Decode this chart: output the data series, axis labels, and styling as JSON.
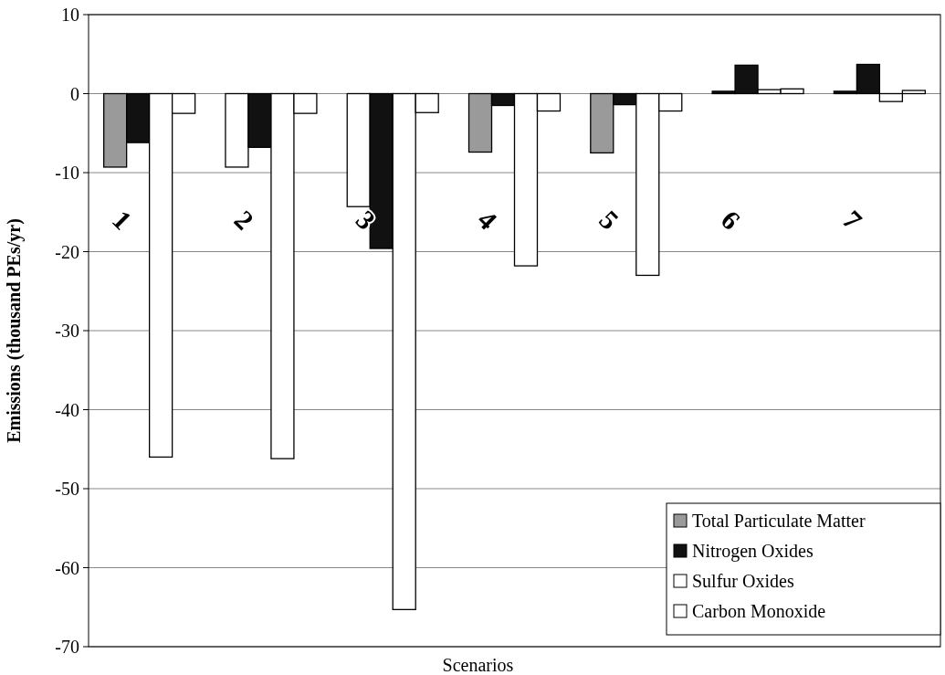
{
  "chart_data": {
    "type": "bar",
    "xlabel": "Scenarios",
    "ylabel": "Emissions (thousand PEs/yr)",
    "categories": [
      "1",
      "2",
      "3",
      "4",
      "5",
      "6",
      "7"
    ],
    "series": [
      {
        "name": "Total Particulate Matter",
        "color": "#9a9a9a",
        "colors": [
          "#9a9a9a",
          "#ffffff",
          "#ffffff",
          "#9a9a9a",
          "#9a9a9a",
          "#111111",
          "#111111"
        ],
        "values": [
          -9.3,
          -9.3,
          -14.3,
          -7.4,
          -7.5,
          0.3,
          0.3
        ]
      },
      {
        "name": "Nitrogen Oxides",
        "color": "#111111",
        "values": [
          -6.2,
          -6.8,
          -19.6,
          -1.5,
          -1.4,
          3.6,
          3.7
        ]
      },
      {
        "name": "Sulfur Oxides",
        "color": "#ffffff",
        "values": [
          -46.0,
          -46.2,
          -65.3,
          -21.8,
          -23.0,
          0.5,
          -1.0
        ]
      },
      {
        "name": "Carbon Monoxide",
        "color": "#ffffff",
        "values": [
          -2.5,
          -2.5,
          -2.4,
          -2.2,
          -2.2,
          0.6,
          0.4
        ]
      }
    ],
    "ylim": [
      -70,
      10
    ],
    "yticks": [
      10,
      0,
      -10,
      -20,
      -30,
      -40,
      -50,
      -60,
      -70
    ],
    "grid": "y",
    "legend": "bottom right"
  }
}
